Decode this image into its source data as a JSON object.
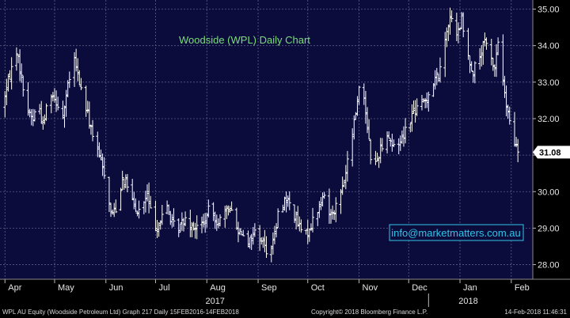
{
  "chart_data": {
    "type": "ohlc",
    "title": "Woodside (WPL) Daily Chart",
    "watermark": "info@marketmatters.com.au",
    "last_price_label": "31.08",
    "last_price": 31.08,
    "ylim": [
      27.6,
      35.25
    ],
    "y_ticks": [
      {
        "v": 28,
        "label": "28.00"
      },
      {
        "v": 29,
        "label": "29.00"
      },
      {
        "v": 30,
        "label": "30.00"
      },
      {
        "v": 31,
        "label": "31.00"
      },
      {
        "v": 32,
        "label": "32.00"
      },
      {
        "v": 33,
        "label": "33.00"
      },
      {
        "v": 34,
        "label": "34.00"
      },
      {
        "v": 35,
        "label": "35.00"
      }
    ],
    "x_ticks": [
      {
        "day": 0,
        "label": "Apr"
      },
      {
        "day": 30,
        "label": "May"
      },
      {
        "day": 61,
        "label": "Jun"
      },
      {
        "day": 91,
        "label": "Jul"
      },
      {
        "day": 122,
        "label": "Aug"
      },
      {
        "day": 153,
        "label": "Sep"
      },
      {
        "day": 183,
        "label": "Oct"
      },
      {
        "day": 214,
        "label": "Nov"
      },
      {
        "day": 244,
        "label": "Dec"
      },
      {
        "day": 275,
        "label": "Jan"
      },
      {
        "day": 306,
        "label": "Feb"
      }
    ],
    "year_labels": [
      {
        "day": 127,
        "label": "2017"
      },
      {
        "day": 280,
        "label": "2018"
      }
    ],
    "year_divider_day": 256,
    "x_range_days": [
      -3,
      319
    ],
    "grid": true,
    "series_color": "#ffffff",
    "background": "#0c0c3c",
    "price_path": [
      [
        -2,
        32.3
      ],
      [
        3,
        33.2
      ],
      [
        7,
        33.9
      ],
      [
        10,
        33.1
      ],
      [
        13,
        32.3
      ],
      [
        17,
        32.0
      ],
      [
        20,
        32.5
      ],
      [
        23,
        31.8
      ],
      [
        27,
        32.8
      ],
      [
        31,
        32.5
      ],
      [
        35,
        32.1
      ],
      [
        39,
        33.1
      ],
      [
        42,
        33.6
      ],
      [
        46,
        32.8
      ],
      [
        50,
        32.1
      ],
      [
        54,
        31.4
      ],
      [
        58,
        30.8
      ],
      [
        61,
        30.4
      ],
      [
        64,
        29.4
      ],
      [
        68,
        29.6
      ],
      [
        71,
        30.4
      ],
      [
        75,
        30.1
      ],
      [
        79,
        29.4
      ],
      [
        83,
        29.6
      ],
      [
        86,
        29.9
      ],
      [
        90,
        29.0
      ],
      [
        94,
        29.2
      ],
      [
        98,
        29.6
      ],
      [
        101,
        29.1
      ],
      [
        105,
        29.0
      ],
      [
        109,
        29.3
      ],
      [
        113,
        29.1
      ],
      [
        117,
        29.0
      ],
      [
        121,
        29.2
      ],
      [
        124,
        29.6
      ],
      [
        128,
        29.2
      ],
      [
        132,
        29.3
      ],
      [
        136,
        29.6
      ],
      [
        140,
        29.0
      ],
      [
        144,
        28.9
      ],
      [
        147,
        28.6
      ],
      [
        151,
        28.9
      ],
      [
        155,
        28.7
      ],
      [
        159,
        28.3
      ],
      [
        163,
        28.8
      ],
      [
        166,
        29.6
      ],
      [
        170,
        29.8
      ],
      [
        174,
        29.5
      ],
      [
        178,
        29.0
      ],
      [
        182,
        28.8
      ],
      [
        185,
        29.1
      ],
      [
        189,
        29.5
      ],
      [
        193,
        29.9
      ],
      [
        196,
        29.4
      ],
      [
        200,
        29.6
      ],
      [
        204,
        30.1
      ],
      [
        208,
        31.0
      ],
      [
        212,
        32.2
      ],
      [
        215,
        33.2
      ],
      [
        217,
        32.6
      ],
      [
        219,
        31.8
      ],
      [
        221,
        31.0
      ],
      [
        223,
        30.6
      ],
      [
        227,
        31.2
      ],
      [
        231,
        31.6
      ],
      [
        235,
        31.2
      ],
      [
        239,
        31.4
      ],
      [
        243,
        31.8
      ],
      [
        247,
        32.2
      ],
      [
        251,
        32.3
      ],
      [
        255,
        32.6
      ],
      [
        259,
        33.0
      ],
      [
        263,
        33.3
      ],
      [
        267,
        34.5
      ],
      [
        270,
        34.8
      ],
      [
        273,
        34.2
      ],
      [
        276,
        34.7
      ],
      [
        279,
        33.8
      ],
      [
        283,
        33.3
      ],
      [
        287,
        33.7
      ],
      [
        290,
        34.1
      ],
      [
        293,
        33.7
      ],
      [
        296,
        33.4
      ],
      [
        298,
        34.1
      ],
      [
        300,
        33.6
      ],
      [
        302,
        32.6
      ],
      [
        304,
        32.1
      ],
      [
        306,
        31.6
      ],
      [
        308,
        31.3
      ],
      [
        310,
        31.1
      ]
    ]
  },
  "footer": {
    "left": "WPL AU Equity (Woodside Petroleum Ltd) Graph 217  Daily 15FEB2016-14FEB2018",
    "mid": "Copyright© 2018 Bloomberg Finance L.P.",
    "right": "14-Feb-2018 11:46:31"
  }
}
